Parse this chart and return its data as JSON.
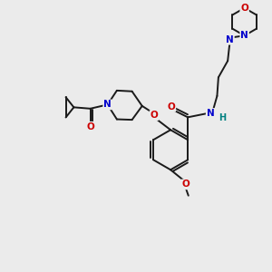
{
  "bg_color": "#ebebeb",
  "bond_color": "#1a1a1a",
  "atom_colors": {
    "O": "#cc0000",
    "N": "#0000cc",
    "H": "#008080",
    "C": "#1a1a1a"
  },
  "figsize": [
    3.0,
    3.0
  ],
  "dpi": 100
}
